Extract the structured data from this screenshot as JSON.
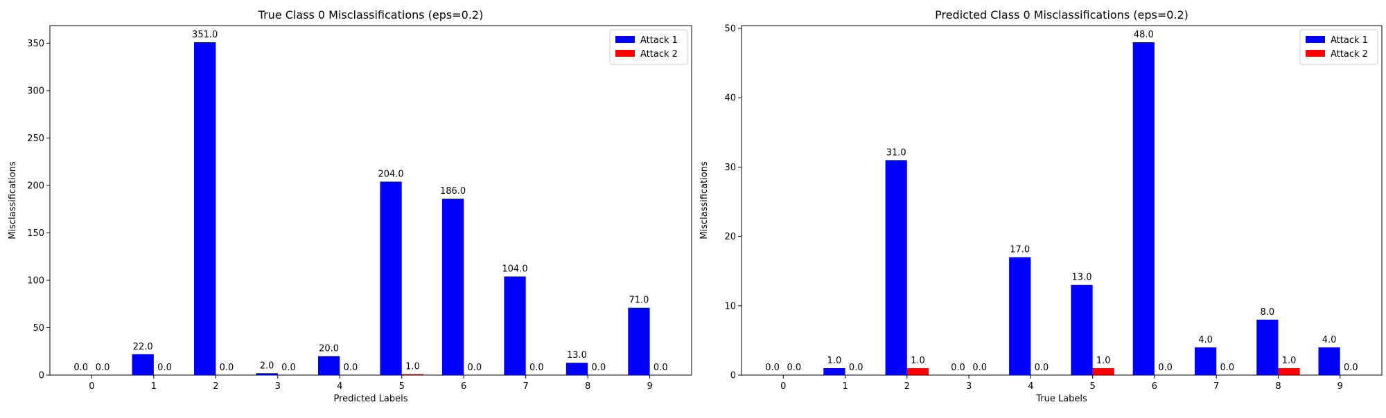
{
  "chart_data": [
    {
      "type": "bar",
      "title": "True Class 0 Misclassifications (eps=0.2)",
      "xlabel": "Predicted Labels",
      "ylabel": "Misclassifications",
      "categories": [
        "0",
        "1",
        "2",
        "3",
        "4",
        "5",
        "6",
        "7",
        "8",
        "9"
      ],
      "series": [
        {
          "name": "Attack 1",
          "color": "#0000ff",
          "values": [
            0,
            22,
            351,
            2,
            20,
            204,
            186,
            104,
            13,
            71
          ]
        },
        {
          "name": "Attack 2",
          "color": "#ff0000",
          "values": [
            0,
            0,
            0,
            0,
            0,
            1,
            0,
            0,
            0,
            0
          ]
        }
      ],
      "data_labels": {
        "Attack 1": [
          "0.0",
          "22.0",
          "351.0",
          "2.0",
          "20.0",
          "204.0",
          "186.0",
          "104.0",
          "13.0",
          "71.0"
        ],
        "Attack 2": [
          "0.0",
          "0.0",
          "0.0",
          "0.0",
          "0.0",
          "1.0",
          "0.0",
          "0.0",
          "0.0",
          "0.0"
        ]
      },
      "ylim": [
        0,
        368.55
      ],
      "yticks": [
        0,
        50,
        100,
        150,
        200,
        250,
        300,
        350
      ],
      "legend": "top-right",
      "grid": false
    },
    {
      "type": "bar",
      "title": "Predicted Class 0 Misclassifications (eps=0.2)",
      "xlabel": "True Labels",
      "ylabel": "Misclassifications",
      "categories": [
        "0",
        "1",
        "2",
        "3",
        "4",
        "5",
        "6",
        "7",
        "8",
        "9"
      ],
      "series": [
        {
          "name": "Attack 1",
          "color": "#0000ff",
          "values": [
            0,
            1,
            31,
            0,
            17,
            13,
            48,
            4,
            8,
            4
          ]
        },
        {
          "name": "Attack 2",
          "color": "#ff0000",
          "values": [
            0,
            0,
            1,
            0,
            0,
            1,
            0,
            0,
            1,
            0
          ]
        }
      ],
      "data_labels": {
        "Attack 1": [
          "0.0",
          "1.0",
          "31.0",
          "0.0",
          "17.0",
          "13.0",
          "48.0",
          "4.0",
          "8.0",
          "4.0"
        ],
        "Attack 2": [
          "0.0",
          "0.0",
          "1.0",
          "0.0",
          "0.0",
          "1.0",
          "0.0",
          "0.0",
          "1.0",
          "0.0"
        ]
      },
      "ylim": [
        0,
        50.4
      ],
      "yticks": [
        0,
        10,
        20,
        30,
        40,
        50
      ],
      "legend": "top-right",
      "grid": false
    }
  ]
}
